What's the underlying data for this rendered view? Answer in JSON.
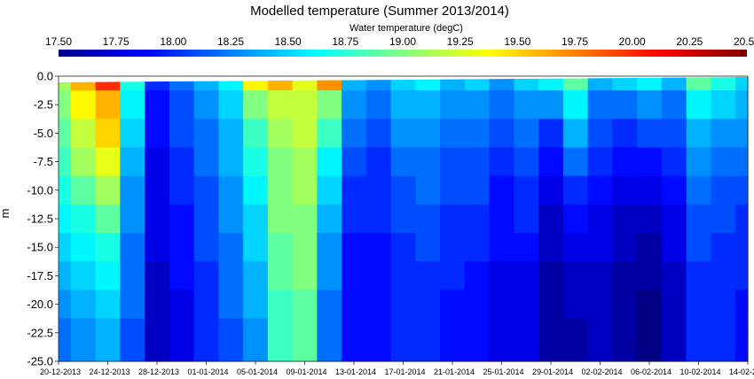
{
  "chart_data": {
    "type": "heatmap",
    "title": "Modelled temperature (Summer 2013/2014)",
    "ylabel": "m",
    "xlabel": "",
    "colorbar": {
      "label": "Water temperature (degC)",
      "range": [
        17.5,
        20.5
      ],
      "ticks": [
        "17.50",
        "17.75",
        "18.00",
        "18.25",
        "18.50",
        "18.75",
        "19.00",
        "19.25",
        "19.50",
        "19.75",
        "20.00",
        "20.25",
        "20.50"
      ],
      "placement": "top",
      "colormap": "jet"
    },
    "y_ticks": [
      "0.0",
      "-2.5",
      "-5.0",
      "-7.5",
      "-10.0",
      "-12.5",
      "-15.0",
      "-17.5",
      "-20.0",
      "-22.5",
      "-25.0"
    ],
    "ylim": [
      -25,
      0
    ],
    "x_ticks": [
      "20-12-2013",
      "24-12-2013",
      "28-12-2013",
      "01-01-2014",
      "05-01-2014",
      "09-01-2014",
      "13-01-2014",
      "17-01-2014",
      "21-01-2014",
      "25-01-2014",
      "29-01-2014",
      "02-02-2014",
      "06-02-2014",
      "10-02-2014",
      "14-02-2014"
    ],
    "xlim": [
      "2013-12-20",
      "2014-02-14"
    ],
    "depth_levels": [
      0,
      -2.5,
      -5,
      -7.5,
      -10,
      -12.5,
      -15,
      -17.5,
      -20,
      -22.5,
      -25
    ],
    "series": [
      {
        "date": "2013-12-20",
        "temps": [
          19.1,
          19.0,
          18.9,
          18.8,
          18.7,
          18.6,
          18.5,
          18.4,
          18.3,
          18.2,
          18.2
        ]
      },
      {
        "date": "2013-12-22",
        "temps": [
          19.6,
          19.4,
          19.2,
          19.1,
          18.9,
          18.7,
          18.6,
          18.5,
          18.4,
          18.3,
          18.3
        ]
      },
      {
        "date": "2013-12-24",
        "temps": [
          20.0,
          19.6,
          19.5,
          19.3,
          19.1,
          18.9,
          18.7,
          18.6,
          18.5,
          18.4,
          18.4
        ]
      },
      {
        "date": "2013-12-26",
        "temps": [
          18.7,
          18.6,
          18.5,
          18.4,
          18.3,
          18.3,
          18.2,
          18.2,
          18.2,
          18.1,
          18.1
        ]
      },
      {
        "date": "2013-12-28",
        "temps": [
          18.0,
          17.9,
          17.9,
          17.8,
          17.8,
          17.8,
          17.8,
          17.7,
          17.7,
          17.7,
          17.7
        ]
      },
      {
        "date": "2013-12-30",
        "temps": [
          18.2,
          18.1,
          18.1,
          18.0,
          18.0,
          17.9,
          17.9,
          17.9,
          17.8,
          17.8,
          17.8
        ]
      },
      {
        "date": "2014-01-01",
        "temps": [
          18.4,
          18.3,
          18.2,
          18.2,
          18.1,
          18.1,
          18.1,
          18.0,
          18.0,
          18.0,
          18.0
        ]
      },
      {
        "date": "2014-01-03",
        "temps": [
          18.6,
          18.5,
          18.4,
          18.4,
          18.3,
          18.3,
          18.2,
          18.2,
          18.2,
          18.1,
          18.1
        ]
      },
      {
        "date": "2014-01-05",
        "temps": [
          19.4,
          19.0,
          18.8,
          18.7,
          18.6,
          18.5,
          18.5,
          18.4,
          18.4,
          18.3,
          18.3
        ]
      },
      {
        "date": "2014-01-07",
        "temps": [
          19.6,
          19.2,
          19.1,
          19.0,
          19.0,
          19.0,
          18.9,
          18.9,
          18.8,
          18.8,
          18.8
        ]
      },
      {
        "date": "2014-01-09",
        "temps": [
          19.3,
          19.2,
          19.2,
          19.1,
          19.1,
          19.0,
          19.0,
          19.0,
          18.9,
          18.9,
          18.9
        ]
      },
      {
        "date": "2014-01-11",
        "temps": [
          19.7,
          19.0,
          18.8,
          18.6,
          18.5,
          18.4,
          18.3,
          18.3,
          18.2,
          18.2,
          18.2
        ]
      },
      {
        "date": "2014-01-13",
        "temps": [
          18.4,
          18.3,
          18.2,
          18.1,
          18.0,
          18.0,
          17.9,
          17.9,
          17.9,
          17.9,
          17.9
        ]
      },
      {
        "date": "2014-01-15",
        "temps": [
          18.3,
          18.2,
          18.1,
          18.0,
          18.0,
          18.0,
          17.9,
          17.9,
          17.9,
          17.9,
          17.9
        ]
      },
      {
        "date": "2014-01-17",
        "temps": [
          18.5,
          18.4,
          18.3,
          18.2,
          18.1,
          18.1,
          18.0,
          18.0,
          18.0,
          18.0,
          18.0
        ]
      },
      {
        "date": "2014-01-19",
        "temps": [
          18.6,
          18.4,
          18.3,
          18.2,
          18.2,
          18.1,
          18.1,
          18.0,
          18.0,
          18.0,
          18.0
        ]
      },
      {
        "date": "2014-01-21",
        "temps": [
          18.4,
          18.3,
          18.2,
          18.1,
          18.1,
          18.0,
          18.0,
          18.0,
          17.9,
          17.9,
          17.9
        ]
      },
      {
        "date": "2014-01-23",
        "temps": [
          18.5,
          18.3,
          18.2,
          18.1,
          18.1,
          18.0,
          18.0,
          17.9,
          17.9,
          17.9,
          17.9
        ]
      },
      {
        "date": "2014-01-25",
        "temps": [
          18.3,
          18.2,
          18.1,
          18.0,
          17.9,
          17.9,
          17.9,
          17.8,
          17.8,
          17.8,
          17.8
        ]
      },
      {
        "date": "2014-01-27",
        "temps": [
          18.5,
          18.3,
          18.2,
          18.1,
          18.0,
          18.0,
          17.9,
          17.8,
          17.8,
          17.8,
          17.8
        ]
      },
      {
        "date": "2014-01-29",
        "temps": [
          18.6,
          18.3,
          18.0,
          17.9,
          17.8,
          17.7,
          17.7,
          17.6,
          17.6,
          17.6,
          17.6
        ]
      },
      {
        "date": "2014-01-31",
        "temps": [
          18.9,
          18.6,
          18.4,
          18.2,
          18.0,
          17.9,
          17.8,
          17.7,
          17.7,
          17.6,
          17.6
        ]
      },
      {
        "date": "2014-02-02",
        "temps": [
          18.4,
          18.2,
          18.1,
          18.0,
          17.9,
          17.8,
          17.8,
          17.7,
          17.7,
          17.7,
          17.7
        ]
      },
      {
        "date": "2014-02-04",
        "temps": [
          18.5,
          18.2,
          18.0,
          17.9,
          17.8,
          17.7,
          17.7,
          17.6,
          17.6,
          17.6,
          17.6
        ]
      },
      {
        "date": "2014-02-06",
        "temps": [
          18.6,
          18.3,
          18.1,
          17.9,
          17.8,
          17.7,
          17.6,
          17.6,
          17.5,
          17.5,
          17.5
        ]
      },
      {
        "date": "2014-02-08",
        "temps": [
          18.4,
          18.2,
          18.1,
          18.0,
          17.9,
          17.8,
          17.8,
          17.7,
          17.7,
          17.7,
          17.7
        ]
      },
      {
        "date": "2014-02-10",
        "temps": [
          18.9,
          18.6,
          18.4,
          18.3,
          18.2,
          18.1,
          18.1,
          18.0,
          18.0,
          18.0,
          18.0
        ]
      },
      {
        "date": "2014-02-12",
        "temps": [
          18.7,
          18.5,
          18.3,
          18.2,
          18.1,
          18.1,
          18.0,
          18.0,
          18.0,
          18.0,
          18.0
        ]
      },
      {
        "date": "2014-02-14",
        "temps": [
          18.5,
          18.4,
          18.3,
          18.2,
          18.1,
          18.0,
          18.0,
          18.0,
          17.9,
          17.9,
          17.9
        ]
      }
    ]
  }
}
